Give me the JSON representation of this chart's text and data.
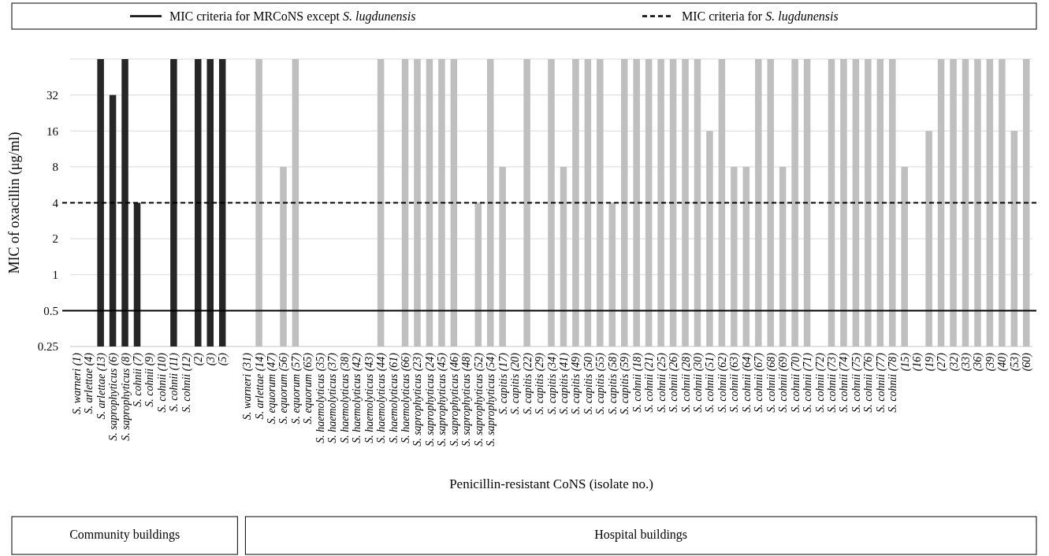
{
  "chart_data": {
    "type": "bar",
    "xlabel": "Penicillin-resistant CoNS (isolate no.)",
    "ylabel": "MIC of oxacillin (μg/ml)",
    "categories": [
      "S. warneri (1)",
      "S. arlettae (4)",
      "S. arlettae (13)",
      "S. saprophyticus (6)",
      "S. saprophyticus (8)",
      "S. cohnii (7)",
      "S. cohnii (9)",
      "S. cohnii (10)",
      "S. cohnii (11)",
      "S. cohnii (12)",
      "(2)",
      "(3)",
      "(5)",
      null,
      "S. warneri (31)",
      "S. arlettae (14)",
      "S. equorum (47)",
      "S. equorum (56)",
      "S. equorum (57)",
      "S. equorum (65)",
      "S. haemolyticus (35)",
      "S. haemolyticus (37)",
      "S. haemolyticus (38)",
      "S. haemolyticus (42)",
      "S. haemolyticus (43)",
      "S. haemolyticus (44)",
      "S. haemolyticus (61)",
      "S. haemolyticus (66)",
      "S. saprophyticus (23)",
      "S. saprophyticus (24)",
      "S. saprophyticus (45)",
      "S. saprophyticus (46)",
      "S. saprophyticus (48)",
      "S. saprophyticus (52)",
      "S. saprophyticus (54)",
      "S. capitis (17)",
      "S. capitis (20)",
      "S. capitis (22)",
      "S. capitis (29)",
      "S. capitis (34)",
      "S. capitis (41)",
      "S. capitis (49)",
      "S. capitis (50)",
      "S. capitis (55)",
      "S. capitis (58)",
      "S. capitis (59)",
      "S. cohnii (18)",
      "S. cohnii (21)",
      "S. cohnii (25)",
      "S. cohnii (26)",
      "S. cohnii (28)",
      "S. cohnii (30)",
      "S. cohnii (51)",
      "S. cohnii (62)",
      "S. cohnii (63)",
      "S. cohnii (64)",
      "S. cohnii (67)",
      "S. cohnii (68)",
      "S. cohnii (69)",
      "S. cohnii (70)",
      "S. cohnii (71)",
      "S. cohnii (72)",
      "S. cohnii (73)",
      "S. cohnii (74)",
      "S. cohnii (75)",
      "S. cohnii (76)",
      "S. cohnii (77)",
      "S. cohnii (78)",
      "(15)",
      "(16)",
      "(19)",
      "(27)",
      "(32)",
      "(33)",
      "(36)",
      "(39)",
      "(40)",
      "(53)",
      "(60)"
    ],
    "values": [
      null,
      null,
      64,
      32,
      64,
      4,
      null,
      null,
      64,
      null,
      64,
      64,
      64,
      null,
      null,
      64,
      null,
      8,
      64,
      null,
      null,
      null,
      null,
      null,
      null,
      64,
      null,
      64,
      64,
      64,
      64,
      64,
      null,
      4,
      64,
      8,
      null,
      64,
      null,
      64,
      8,
      64,
      64,
      64,
      4,
      64,
      64,
      64,
      64,
      64,
      64,
      64,
      16,
      64,
      8,
      8,
      64,
      64,
      8,
      64,
      64,
      null,
      64,
      64,
      64,
      64,
      64,
      64,
      8,
      null,
      16,
      64,
      64,
      64,
      64,
      64,
      64,
      16,
      64
    ],
    "colors": [
      null,
      null,
      "#262626",
      "#262626",
      "#262626",
      "#262626",
      null,
      null,
      "#262626",
      null,
      "#262626",
      "#262626",
      "#262626",
      null,
      null,
      "#bfbfbf",
      null,
      "#bfbfbf",
      "#bfbfbf",
      null,
      null,
      null,
      null,
      null,
      null,
      "#bfbfbf",
      null,
      "#bfbfbf",
      "#bfbfbf",
      "#bfbfbf",
      "#bfbfbf",
      "#bfbfbf",
      null,
      "#bfbfbf",
      "#bfbfbf",
      "#bfbfbf",
      null,
      "#bfbfbf",
      null,
      "#bfbfbf",
      "#bfbfbf",
      "#bfbfbf",
      "#bfbfbf",
      "#bfbfbf",
      "#bfbfbf",
      "#bfbfbf",
      "#bfbfbf",
      "#bfbfbf",
      "#bfbfbf",
      "#bfbfbf",
      "#bfbfbf",
      "#bfbfbf",
      "#bfbfbf",
      "#bfbfbf",
      "#bfbfbf",
      "#bfbfbf",
      "#bfbfbf",
      "#bfbfbf",
      "#bfbfbf",
      "#bfbfbf",
      "#bfbfbf",
      null,
      "#bfbfbf",
      "#bfbfbf",
      "#bfbfbf",
      "#bfbfbf",
      "#bfbfbf",
      "#bfbfbf",
      "#bfbfbf",
      null,
      "#bfbfbf",
      "#bfbfbf",
      "#bfbfbf",
      "#bfbfbf",
      "#bfbfbf",
      "#bfbfbf",
      "#bfbfbf",
      "#bfbfbf",
      "#bfbfbf"
    ],
    "log": true,
    "ylim": [
      0.25,
      64
    ],
    "yticks": [
      0.25,
      0.5,
      1,
      2,
      4,
      8,
      16,
      32,
      {
        "value": 64,
        "label": null
      }
    ],
    "grid": "y",
    "legend": "top",
    "ref_lines": [
      {
        "axis": "y",
        "value": 0.5,
        "label": "MIC criteria for MRCoNS except S. lugdunensis",
        "line_style": "solid",
        "color": "#000000"
      },
      {
        "axis": "y",
        "value": 4,
        "label": "MIC criteria for S. lugdunensis",
        "line_style": "dashed",
        "color": "#000000"
      }
    ],
    "annotations": [
      "Community buildings",
      "Hospital buildings"
    ]
  }
}
